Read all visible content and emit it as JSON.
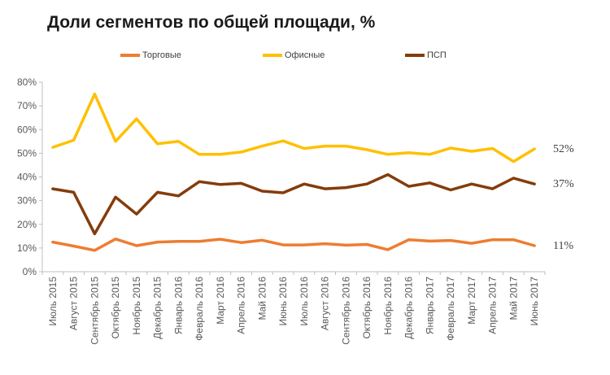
{
  "chart_data": {
    "type": "line",
    "title": "Доли сегментов по общей площади, %",
    "categories": [
      "Июль 2015",
      "Август 2015",
      "Сентябрь 2015",
      "Октябрь 2015",
      "Ноябрь 2015",
      "Декабрь 2015",
      "Январь 2016",
      "Февраль 2016",
      "Март 2016",
      "Апрель 2016",
      "Май 2016",
      "Июнь 2016",
      "Июль 2016",
      "Август 2016",
      "Сентябрь 2016",
      "Октябрь 2016",
      "Ноябрь 2016",
      "Декабрь 2016",
      "Январь 2017",
      "Февраль 2017",
      "Март 2017",
      "Апрель 2017",
      "Май 2017",
      "Июнь 2017"
    ],
    "y_ticks": [
      "0%",
      "10%",
      "20%",
      "30%",
      "40%",
      "50%",
      "60%",
      "70%",
      "80%"
    ],
    "ylim": [
      0,
      80
    ],
    "legend_position": "top",
    "grid": false,
    "series": [
      {
        "name": "Торговые",
        "color": "#ED7D31",
        "values": [
          12.5,
          10.8,
          9,
          13.8,
          11,
          12.5,
          12.8,
          12.8,
          13.7,
          12.3,
          13.3,
          11.3,
          11.3,
          11.8,
          11.2,
          11.5,
          9.3,
          13.5,
          12.9,
          13.2,
          12,
          13.5,
          13.5,
          11
        ],
        "end_label": "11%"
      },
      {
        "name": "Офисные",
        "color": "#FFC000",
        "values": [
          52.5,
          55.5,
          75,
          55,
          64.5,
          54,
          55,
          49.5,
          49.5,
          50.5,
          53,
          55.2,
          52,
          53,
          53,
          51.5,
          49.5,
          50.2,
          49.5,
          52.2,
          50.8,
          52,
          46.5,
          51.8
        ],
        "end_label": "52%"
      },
      {
        "name": "ПСП",
        "color": "#843C0C",
        "values": [
          35,
          33.5,
          16,
          31.5,
          24.3,
          33.5,
          32,
          38,
          36.8,
          37.3,
          34,
          33.3,
          37,
          35,
          35.5,
          37,
          41,
          36,
          37.5,
          34.5,
          37,
          35,
          39.5,
          37
        ],
        "end_label": "37%"
      }
    ]
  }
}
